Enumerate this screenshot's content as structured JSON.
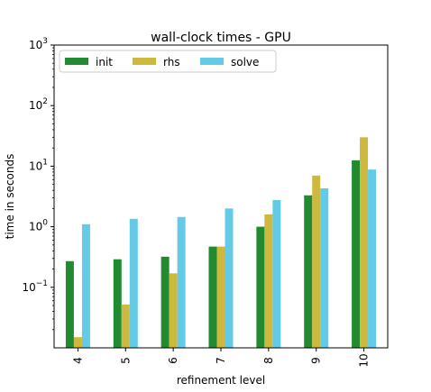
{
  "chart_data": {
    "type": "bar",
    "title": "wall-clock times - GPU",
    "xlabel": "refinement level",
    "ylabel": "time in seconds",
    "yscale": "log",
    "ylim": [
      0.01,
      1000
    ],
    "categories": [
      "4",
      "5",
      "6",
      "7",
      "8",
      "9",
      "10"
    ],
    "series": [
      {
        "name": "init",
        "color": "#228b32",
        "values": [
          0.27,
          0.29,
          0.32,
          0.47,
          1.0,
          3.3,
          12.5
        ]
      },
      {
        "name": "rhs",
        "color": "#cdb93e",
        "values": [
          0.015,
          0.052,
          0.17,
          0.47,
          1.6,
          7.0,
          30
        ]
      },
      {
        "name": "solve",
        "color": "#63cbe8",
        "values": [
          1.1,
          1.35,
          1.45,
          2.0,
          2.75,
          4.3,
          8.8
        ]
      }
    ],
    "y_ticks": [
      {
        "value": 0.1,
        "base": "10",
        "exp": "−1"
      },
      {
        "value": 1,
        "base": "10",
        "exp": "0"
      },
      {
        "value": 10,
        "base": "10",
        "exp": "1"
      },
      {
        "value": 100,
        "base": "10",
        "exp": "2"
      },
      {
        "value": 1000,
        "base": "10",
        "exp": "3"
      }
    ],
    "legend_position": "top-left",
    "grid": false
  }
}
